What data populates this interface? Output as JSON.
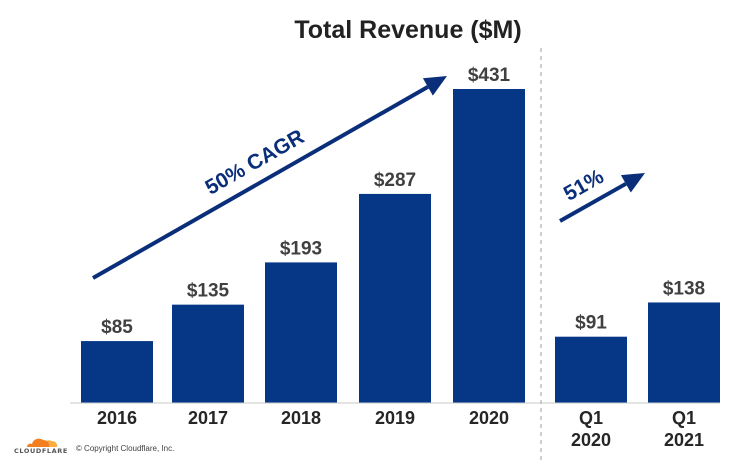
{
  "chart_data": {
    "type": "bar",
    "title": "Total Revenue ($M)",
    "groups": [
      {
        "categories": [
          "2016",
          "2017",
          "2018",
          "2019",
          "2020"
        ],
        "values": [
          85,
          135,
          193,
          287,
          431
        ],
        "value_labels": [
          "$85",
          "$135",
          "$193",
          "$287",
          "$431"
        ],
        "annotation": "50% CAGR"
      },
      {
        "categories": [
          [
            "Q1",
            "2020"
          ],
          [
            "Q1",
            "2021"
          ]
        ],
        "values": [
          91,
          138
        ],
        "value_labels": [
          "$91",
          "$138"
        ],
        "annotation": "51%"
      }
    ],
    "ylim": [
      0,
      431
    ],
    "grid": false,
    "colors": {
      "bar": "#063786",
      "arrow": "#0a2e7a",
      "divider": "#b0b0b0"
    }
  },
  "footer": {
    "logo_text": "CLOUDFLARE",
    "copyright": "© Copyright Cloudflare, Inc.",
    "logo_colors": [
      "#f38020",
      "#fbad41"
    ]
  }
}
